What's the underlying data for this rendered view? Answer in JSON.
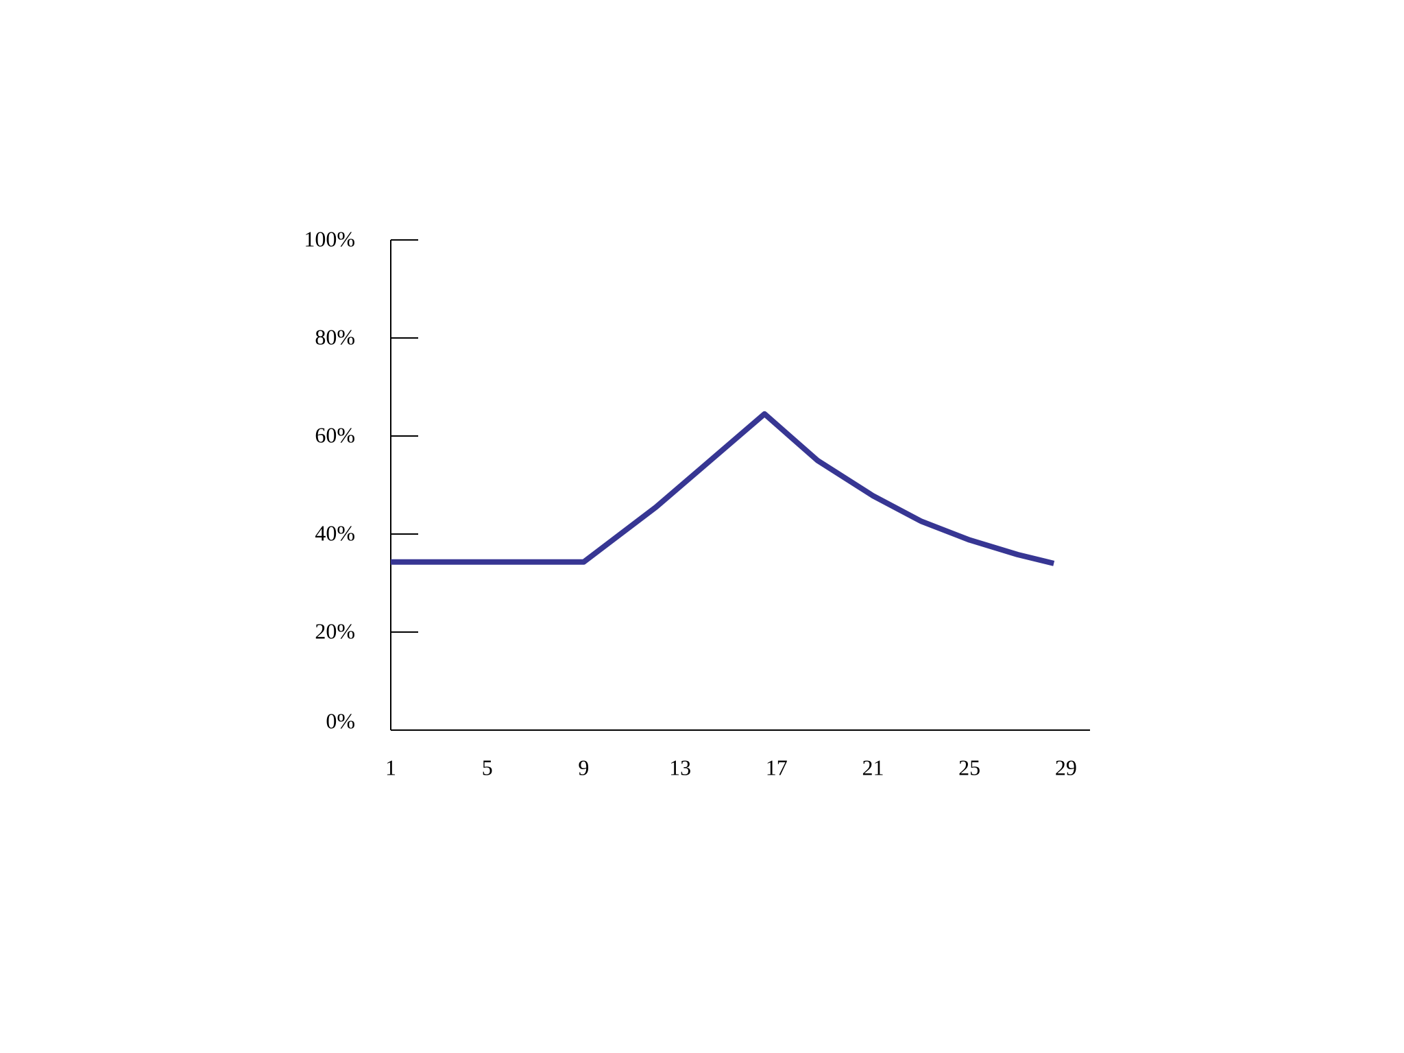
{
  "chart_data": {
    "type": "line",
    "title": "",
    "xlabel": "",
    "ylabel": "",
    "x_ticks": [
      1,
      5,
      9,
      13,
      17,
      21,
      25,
      29
    ],
    "x_tick_labels": [
      "1",
      "5",
      "9",
      "13",
      "17",
      "21",
      "25",
      "29"
    ],
    "y_ticks": [
      0,
      20,
      40,
      60,
      80,
      100
    ],
    "y_tick_labels": [
      "0%",
      "20%",
      "40%",
      "60%",
      "80%",
      "100%"
    ],
    "xlim": [
      1,
      30
    ],
    "ylim": [
      0,
      100
    ],
    "grid": false,
    "legend": "none",
    "series": [
      {
        "color": "#373693",
        "points": [
          [
            1,
            34.3
          ],
          [
            9,
            34.3
          ],
          [
            12,
            45.5
          ],
          [
            16.5,
            64.5
          ],
          [
            18.7,
            55
          ],
          [
            21,
            47.8
          ],
          [
            23,
            42.6
          ],
          [
            25,
            38.8
          ],
          [
            27,
            35.8
          ],
          [
            28.5,
            34
          ]
        ]
      }
    ]
  }
}
